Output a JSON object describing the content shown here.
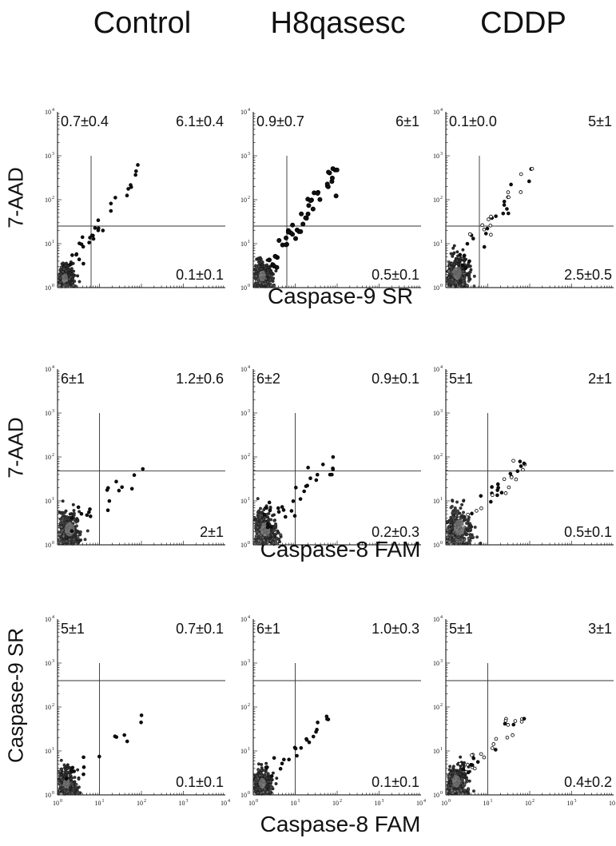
{
  "column_titles": [
    "Control",
    "H8qasesc",
    "CDDP"
  ],
  "row_y_labels": [
    "7-AAD",
    "7-AAD",
    "Caspase-9 SR"
  ],
  "row_x_labels": [
    "Caspase-9 SR",
    "Caspase-8 FAM",
    "Caspase-8 FAM"
  ],
  "axis_tick_labels": [
    "10",
    "10",
    "10",
    "10",
    "10"
  ],
  "axis_tick_exponents": [
    "0",
    "1",
    "2",
    "3",
    "4"
  ],
  "chart_data": [
    {
      "type": "scatter",
      "row": 0,
      "col": 0,
      "xlabel": "Caspase-9 SR",
      "ylabel": "7-AAD",
      "xscale": "log",
      "yscale": "log",
      "xlim": [
        1,
        10000
      ],
      "ylim": [
        1,
        10000
      ],
      "quadrants": {
        "upper_left": "0.7±0.4",
        "upper_right": "6.1±0.4",
        "lower_right": "0.1±0.1"
      }
    },
    {
      "type": "scatter",
      "row": 0,
      "col": 1,
      "xlabel": "Caspase-9 SR",
      "ylabel": "7-AAD",
      "xscale": "log",
      "yscale": "log",
      "xlim": [
        1,
        10000
      ],
      "ylim": [
        1,
        10000
      ],
      "quadrants": {
        "upper_left": "0.9±0.7",
        "upper_right": "6±1",
        "lower_right": "0.5±0.1"
      }
    },
    {
      "type": "scatter",
      "row": 0,
      "col": 2,
      "xlabel": "Caspase-9 SR",
      "ylabel": "7-AAD",
      "xscale": "log",
      "yscale": "log",
      "xlim": [
        1,
        10000
      ],
      "ylim": [
        1,
        10000
      ],
      "quadrants": {
        "upper_left": "0.1±0.0",
        "upper_right": "5±1",
        "lower_right": "2.5±0.5"
      }
    },
    {
      "type": "scatter",
      "row": 1,
      "col": 0,
      "xlabel": "Caspase-8 FAM",
      "ylabel": "7-AAD",
      "xscale": "log",
      "yscale": "log",
      "xlim": [
        1,
        10000
      ],
      "ylim": [
        1,
        10000
      ],
      "quadrants": {
        "upper_left": "6±1",
        "upper_right": "1.2±0.6",
        "lower_right": "2±1"
      }
    },
    {
      "type": "scatter",
      "row": 1,
      "col": 1,
      "xlabel": "Caspase-8 FAM",
      "ylabel": "7-AAD",
      "xscale": "log",
      "yscale": "log",
      "xlim": [
        1,
        10000
      ],
      "ylim": [
        1,
        10000
      ],
      "quadrants": {
        "upper_left": "6±2",
        "upper_right": "0.9±0.1",
        "lower_right": "0.2±0.3"
      }
    },
    {
      "type": "scatter",
      "row": 1,
      "col": 2,
      "xlabel": "Caspase-8 FAM",
      "ylabel": "7-AAD",
      "xscale": "log",
      "yscale": "log",
      "xlim": [
        1,
        10000
      ],
      "ylim": [
        1,
        10000
      ],
      "quadrants": {
        "upper_left": "5±1",
        "upper_right": "2±1",
        "lower_right": "0.5±0.1"
      }
    },
    {
      "type": "scatter",
      "row": 2,
      "col": 0,
      "xlabel": "Caspase-8 FAM",
      "ylabel": "Caspase-9 SR",
      "xscale": "log",
      "yscale": "log",
      "xlim": [
        1,
        10000
      ],
      "ylim": [
        1,
        10000
      ],
      "quadrants": {
        "upper_left": "5±1",
        "upper_right": "0.7±0.1",
        "lower_right": "0.1±0.1"
      }
    },
    {
      "type": "scatter",
      "row": 2,
      "col": 1,
      "xlabel": "Caspase-8 FAM",
      "ylabel": "Caspase-9 SR",
      "xscale": "log",
      "yscale": "log",
      "xlim": [
        1,
        10000
      ],
      "ylim": [
        1,
        10000
      ],
      "quadrants": {
        "upper_left": "6±1",
        "upper_right": "1.0±0.3",
        "lower_right": "0.1±0.1"
      }
    },
    {
      "type": "scatter",
      "row": 2,
      "col": 2,
      "xlabel": "Caspase-8 FAM",
      "ylabel": "Caspase-9 SR",
      "xscale": "log",
      "yscale": "log",
      "xlim": [
        1,
        10000
      ],
      "ylim": [
        1,
        10000
      ],
      "quadrants": {
        "upper_left": "5±1",
        "upper_right": "3±1",
        "lower_right": "0.4±0.2"
      }
    }
  ]
}
